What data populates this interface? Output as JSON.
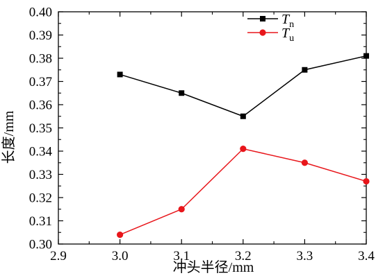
{
  "chart_data": {
    "type": "line",
    "title": "",
    "xlabel": "冲头半径/mm",
    "ylabel": "长度/mm",
    "xlim": [
      2.9,
      3.4
    ],
    "ylim": [
      0.3,
      0.4
    ],
    "x_ticks": [
      "2.9",
      "3.0",
      "3.1",
      "3.2",
      "3.3",
      "3.4"
    ],
    "y_ticks": [
      "0.30",
      "0.31",
      "0.32",
      "0.33",
      "0.34",
      "0.35",
      "0.36",
      "0.37",
      "0.38",
      "0.39",
      "0.40"
    ],
    "x": [
      3.0,
      3.1,
      3.2,
      3.3,
      3.4
    ],
    "series": [
      {
        "name": "Tn",
        "label_main": "T",
        "label_sub": "n",
        "color": "#000000",
        "marker": "square",
        "values": [
          0.373,
          0.365,
          0.355,
          0.375,
          0.381
        ]
      },
      {
        "name": "Tu",
        "label_main": "T",
        "label_sub": "u",
        "color": "#e8161b",
        "marker": "circle",
        "values": [
          0.304,
          0.315,
          0.341,
          0.335,
          0.327
        ]
      }
    ],
    "grid": false,
    "legend": "top-right"
  }
}
